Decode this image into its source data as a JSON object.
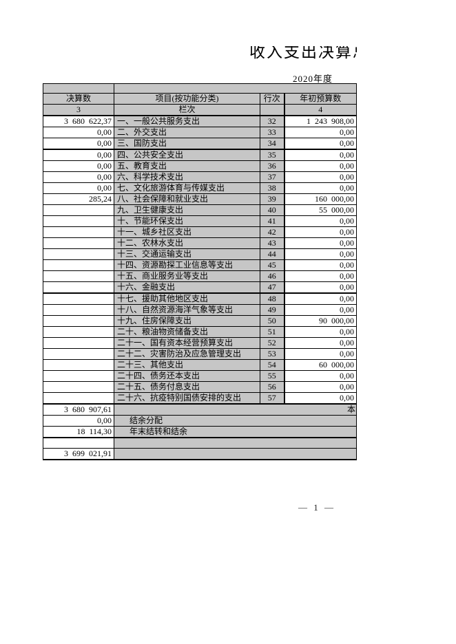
{
  "page": {
    "title": "收入支出决算总表",
    "subtitle": "2020年度",
    "page_number": "— 1 —"
  },
  "colors": {
    "cell_gray": "#c6c6c6",
    "border": "#000000"
  },
  "table": {
    "header": {
      "final": "决算数",
      "item": "项目(按功能分类)",
      "line": "行次",
      "budget": "年初预算数"
    },
    "subheader": {
      "final": "3",
      "item": "栏次",
      "line": "",
      "budget": "4"
    },
    "rows": [
      {
        "final": "3 680 622,37",
        "item": "一、一般公共服务支出",
        "line": "32",
        "budget": "1 243 908,00",
        "thick_bottom": false
      },
      {
        "final": "0,00",
        "item": "二、外交支出",
        "line": "33",
        "budget": "0,00",
        "thick_bottom": false
      },
      {
        "final": "0,00",
        "item": "三、国防支出",
        "line": "34",
        "budget": "0,00",
        "thick_bottom": true
      },
      {
        "final": "0,00",
        "item": "四、公共安全支出",
        "line": "35",
        "budget": "0,00",
        "thick_bottom": false
      },
      {
        "final": "0,00",
        "item": "五、教育支出",
        "line": "36",
        "budget": "0,00",
        "thick_bottom": false
      },
      {
        "final": "0,00",
        "item": "六、科学技术支出",
        "line": "37",
        "budget": "0,00",
        "thick_bottom": false
      },
      {
        "final": "0,00",
        "item": "七、文化旅游体育与传媒支出",
        "line": "38",
        "budget": "0,00",
        "thick_bottom": false
      },
      {
        "final": "285,24",
        "item": "八、社会保障和就业支出",
        "line": "39",
        "budget": "160 000,00",
        "thick_bottom": false
      },
      {
        "final": "",
        "item": "九、卫生健康支出",
        "line": "40",
        "budget": "55 000,00",
        "thick_bottom": false
      },
      {
        "final": "",
        "item": "十、节能环保支出",
        "line": "41",
        "budget": "0,00",
        "thick_bottom": false
      },
      {
        "final": "",
        "item": "十一、城乡社区支出",
        "line": "42",
        "budget": "0,00",
        "thick_bottom": false
      },
      {
        "final": "",
        "item": "十二、农林水支出",
        "line": "43",
        "budget": "0,00",
        "thick_bottom": false
      },
      {
        "final": "",
        "item": "十三、交通运输支出",
        "line": "44",
        "budget": "0,00",
        "thick_bottom": false
      },
      {
        "final": "",
        "item": "十四、资源勘探工业信息等支出",
        "line": "45",
        "budget": "0,00",
        "thick_bottom": false
      },
      {
        "final": "",
        "item": "十五、商业服务业等支出",
        "line": "46",
        "budget": "0,00",
        "thick_bottom": false
      },
      {
        "final": "",
        "item": "十六、金融支出",
        "line": "47",
        "budget": "0,00",
        "thick_bottom": true
      },
      {
        "final": "",
        "item": "十七、援助其他地区支出",
        "line": "48",
        "budget": "0,00",
        "thick_bottom": false
      },
      {
        "final": "",
        "item": "十八、自然资源海洋气象等支出",
        "line": "49",
        "budget": "0,00",
        "thick_bottom": false
      },
      {
        "final": "",
        "item": "十九、住房保障支出",
        "line": "50",
        "budget": "90 000,00",
        "thick_bottom": false
      },
      {
        "final": "",
        "item": "二十、粮油物资储备支出",
        "line": "51",
        "budget": "0,00",
        "thick_bottom": false
      },
      {
        "final": "",
        "item": "二十一、国有资本经营预算支出",
        "line": "52",
        "budget": "0,00",
        "thick_bottom": false
      },
      {
        "final": "",
        "item": "二十二、灾害防治及应急管理支出",
        "line": "53",
        "budget": "0,00",
        "thick_bottom": false
      },
      {
        "final": "",
        "item": "二十三、其他支出",
        "line": "54",
        "budget": "60 000,00",
        "thick_bottom": false
      },
      {
        "final": "",
        "item": "二十四、债务还本支出",
        "line": "55",
        "budget": "0,00",
        "thick_bottom": false
      },
      {
        "final": "",
        "item": "二十五、债务付息支出",
        "line": "56",
        "budget": "0,00",
        "thick_bottom": false
      },
      {
        "final": "",
        "item": "二十六、抗疫特别国债安排的支出",
        "line": "57",
        "budget": "0,00",
        "thick_bottom": true
      }
    ],
    "summary_rows": [
      {
        "final": "3 680 907,61",
        "label": "本",
        "label_align": "right",
        "thick_bottom": false
      },
      {
        "final": "0,00",
        "label": "结余分配",
        "label_align": "indent",
        "thick_bottom": false
      },
      {
        "final": "18 114,30",
        "label": "年末结转和结余",
        "label_align": "indent",
        "thick_bottom": true
      },
      {
        "final": "",
        "label": "",
        "label_align": "indent",
        "thick_bottom": false
      },
      {
        "final": "3 699 021,91",
        "label": "",
        "label_align": "indent",
        "thick_bottom": true
      }
    ]
  }
}
